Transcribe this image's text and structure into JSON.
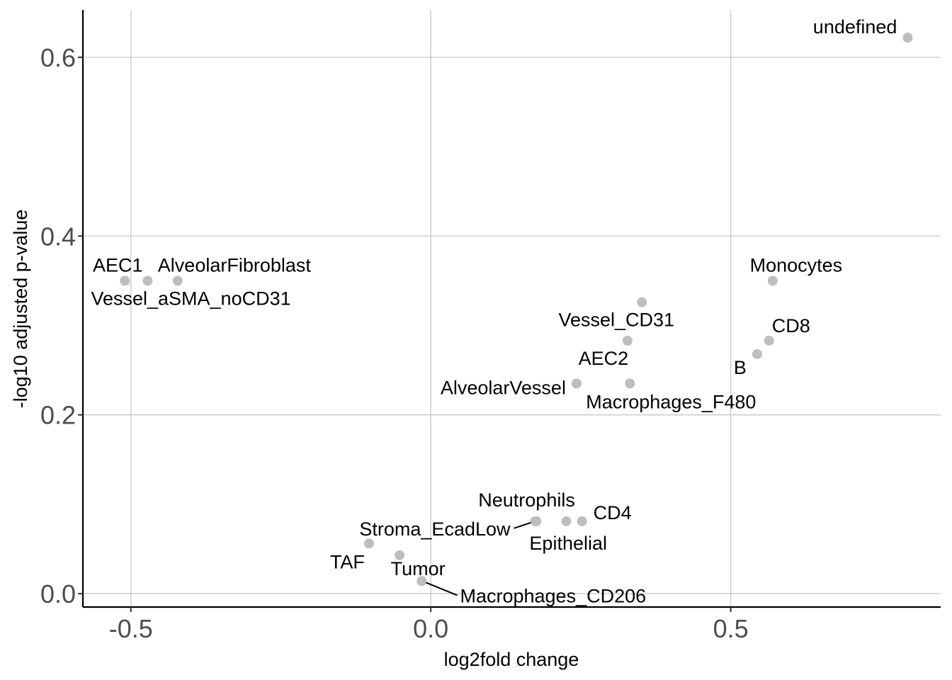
{
  "chart_data": {
    "type": "scatter",
    "title": "",
    "xlabel": "log2fold change",
    "ylabel": "-log10 adjusted p-value",
    "xlim": [
      -0.58,
      0.85
    ],
    "ylim": [
      -0.015,
      0.653
    ],
    "x_ticks": [
      -0.5,
      0.0,
      0.5
    ],
    "x_tick_labels": [
      "-0.5",
      "0.0",
      "0.5"
    ],
    "y_ticks": [
      0.0,
      0.2,
      0.4,
      0.6
    ],
    "y_tick_labels": [
      "0.0",
      "0.2",
      "0.4",
      "0.6"
    ],
    "grid": true,
    "point_color": "#bebebe",
    "points": [
      {
        "label": "undefined",
        "x": 0.795,
        "y": 0.622
      },
      {
        "label": "AEC1",
        "x": -0.51,
        "y": 0.35
      },
      {
        "label": "Vessel_aSMA_noCD31",
        "x": -0.472,
        "y": 0.35
      },
      {
        "label": "AlveolarFibroblast",
        "x": -0.422,
        "y": 0.35
      },
      {
        "label": "Monocytes",
        "x": 0.57,
        "y": 0.35
      },
      {
        "label": "Vessel_CD31",
        "x": 0.352,
        "y": 0.326
      },
      {
        "label": "CD8",
        "x": 0.564,
        "y": 0.283
      },
      {
        "label": "AEC2",
        "x": 0.328,
        "y": 0.283
      },
      {
        "label": "B",
        "x": 0.544,
        "y": 0.268
      },
      {
        "label": "AlveolarVessel",
        "x": 0.243,
        "y": 0.235
      },
      {
        "label": "Macrophages_F480",
        "x": 0.332,
        "y": 0.235
      },
      {
        "label": "Neutrophils",
        "x": 0.226,
        "y": 0.081
      },
      {
        "label": "CD4",
        "x": 0.252,
        "y": 0.081
      },
      {
        "label": "Stroma_EcadLow",
        "x": 0.174,
        "y": 0.081
      },
      {
        "label": "Epithelial",
        "x": 0.176,
        "y": 0.081
      },
      {
        "label": "TAF",
        "x": -0.103,
        "y": 0.056
      },
      {
        "label": "Tumor",
        "x": -0.052,
        "y": 0.043
      },
      {
        "label": "Macrophages_CD206",
        "x": -0.015,
        "y": 0.014
      }
    ]
  }
}
